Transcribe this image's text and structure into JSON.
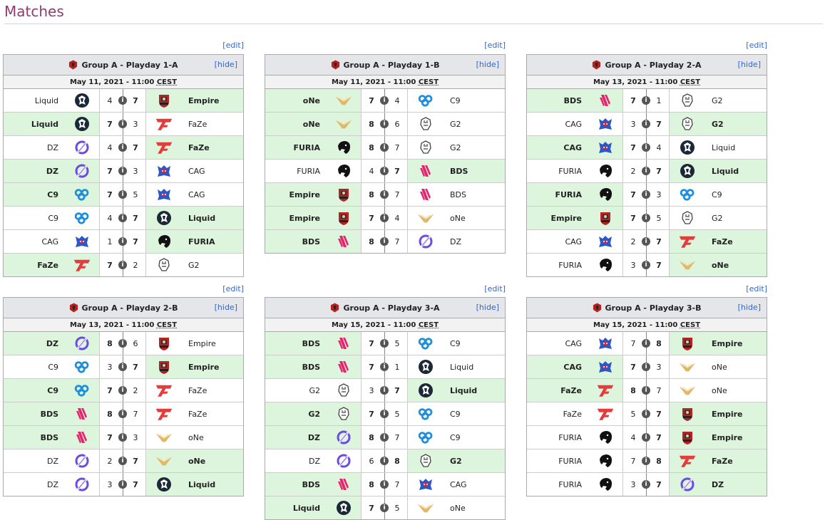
{
  "page": {
    "title": "Matches",
    "edit_label": "[edit]",
    "hide_label": "[hide]"
  },
  "groups": [
    {
      "title": "Group A - Playday 1-A",
      "date": "May 11, 2021 - 11:00",
      "tz": "CEST",
      "matches": [
        {
          "t1": "Liquid",
          "s1": "4",
          "s2": "7",
          "t2": "Empire",
          "w": 2
        },
        {
          "t1": "Liquid",
          "s1": "7",
          "s2": "3",
          "t2": "FaZe",
          "w": 1
        },
        {
          "t1": "DZ",
          "s1": "4",
          "s2": "7",
          "t2": "FaZe",
          "w": 2
        },
        {
          "t1": "DZ",
          "s1": "7",
          "s2": "3",
          "t2": "CAG",
          "w": 1
        },
        {
          "t1": "C9",
          "s1": "7",
          "s2": "5",
          "t2": "CAG",
          "w": 1
        },
        {
          "t1": "C9",
          "s1": "4",
          "s2": "7",
          "t2": "Liquid",
          "w": 2
        },
        {
          "t1": "CAG",
          "s1": "1",
          "s2": "7",
          "t2": "FURIA",
          "w": 2
        },
        {
          "t1": "FaZe",
          "s1": "7",
          "s2": "2",
          "t2": "G2",
          "w": 1
        }
      ]
    },
    {
      "title": "Group A - Playday 1-B",
      "date": "May 11, 2021 - 11:00",
      "tz": "CEST",
      "matches": [
        {
          "t1": "oNe",
          "s1": "7",
          "s2": "4",
          "t2": "C9",
          "w": 1
        },
        {
          "t1": "oNe",
          "s1": "8",
          "s2": "6",
          "t2": "G2",
          "w": 1
        },
        {
          "t1": "FURIA",
          "s1": "8",
          "s2": "7",
          "t2": "G2",
          "w": 1
        },
        {
          "t1": "FURIA",
          "s1": "4",
          "s2": "7",
          "t2": "BDS",
          "w": 2
        },
        {
          "t1": "Empire",
          "s1": "8",
          "s2": "7",
          "t2": "BDS",
          "w": 1
        },
        {
          "t1": "Empire",
          "s1": "7",
          "s2": "4",
          "t2": "oNe",
          "w": 1
        },
        {
          "t1": "BDS",
          "s1": "8",
          "s2": "7",
          "t2": "DZ",
          "w": 1
        }
      ]
    },
    {
      "title": "Group A - Playday 2-A",
      "date": "May 13, 2021 - 11:00",
      "tz": "CEST",
      "matches": [
        {
          "t1": "BDS",
          "s1": "7",
          "s2": "1",
          "t2": "G2",
          "w": 1
        },
        {
          "t1": "CAG",
          "s1": "3",
          "s2": "7",
          "t2": "G2",
          "w": 2
        },
        {
          "t1": "CAG",
          "s1": "7",
          "s2": "4",
          "t2": "Liquid",
          "w": 1
        },
        {
          "t1": "FURIA",
          "s1": "2",
          "s2": "7",
          "t2": "Liquid",
          "w": 2
        },
        {
          "t1": "FURIA",
          "s1": "7",
          "s2": "3",
          "t2": "C9",
          "w": 1
        },
        {
          "t1": "Empire",
          "s1": "7",
          "s2": "5",
          "t2": "G2",
          "w": 1
        },
        {
          "t1": "CAG",
          "s1": "2",
          "s2": "7",
          "t2": "FaZe",
          "w": 2
        },
        {
          "t1": "FURIA",
          "s1": "3",
          "s2": "7",
          "t2": "oNe",
          "w": 2
        }
      ]
    },
    {
      "title": "Group A - Playday 2-B",
      "date": "May 13, 2021 - 11:00",
      "tz": "CEST",
      "matches": [
        {
          "t1": "DZ",
          "s1": "8",
          "s2": "6",
          "t2": "Empire",
          "w": 1
        },
        {
          "t1": "C9",
          "s1": "3",
          "s2": "7",
          "t2": "Empire",
          "w": 2
        },
        {
          "t1": "C9",
          "s1": "7",
          "s2": "2",
          "t2": "FaZe",
          "w": 1
        },
        {
          "t1": "BDS",
          "s1": "8",
          "s2": "7",
          "t2": "FaZe",
          "w": 1
        },
        {
          "t1": "BDS",
          "s1": "7",
          "s2": "3",
          "t2": "oNe",
          "w": 1
        },
        {
          "t1": "DZ",
          "s1": "2",
          "s2": "7",
          "t2": "oNe",
          "w": 2
        },
        {
          "t1": "DZ",
          "s1": "3",
          "s2": "7",
          "t2": "Liquid",
          "w": 2
        }
      ]
    },
    {
      "title": "Group A - Playday 3-A",
      "date": "May 15, 2021 - 11:00",
      "tz": "CEST",
      "matches": [
        {
          "t1": "BDS",
          "s1": "7",
          "s2": "5",
          "t2": "C9",
          "w": 1
        },
        {
          "t1": "BDS",
          "s1": "7",
          "s2": "1",
          "t2": "Liquid",
          "w": 1
        },
        {
          "t1": "G2",
          "s1": "3",
          "s2": "7",
          "t2": "Liquid",
          "w": 2
        },
        {
          "t1": "G2",
          "s1": "7",
          "s2": "5",
          "t2": "C9",
          "w": 1
        },
        {
          "t1": "DZ",
          "s1": "8",
          "s2": "7",
          "t2": "C9",
          "w": 1
        },
        {
          "t1": "DZ",
          "s1": "6",
          "s2": "8",
          "t2": "G2",
          "w": 2
        },
        {
          "t1": "BDS",
          "s1": "8",
          "s2": "7",
          "t2": "CAG",
          "w": 1
        },
        {
          "t1": "Liquid",
          "s1": "7",
          "s2": "5",
          "t2": "oNe",
          "w": 1
        }
      ]
    },
    {
      "title": "Group A - Playday 3-B",
      "date": "May 15, 2021 - 11:00",
      "tz": "CEST",
      "matches": [
        {
          "t1": "CAG",
          "s1": "7",
          "s2": "8",
          "t2": "Empire",
          "w": 2
        },
        {
          "t1": "CAG",
          "s1": "7",
          "s2": "3",
          "t2": "oNe",
          "w": 1
        },
        {
          "t1": "FaZe",
          "s1": "8",
          "s2": "7",
          "t2": "oNe",
          "w": 1
        },
        {
          "t1": "FaZe",
          "s1": "5",
          "s2": "7",
          "t2": "Empire",
          "w": 2
        },
        {
          "t1": "FURIA",
          "s1": "4",
          "s2": "7",
          "t2": "Empire",
          "w": 2
        },
        {
          "t1": "FURIA",
          "s1": "7",
          "s2": "8",
          "t2": "FaZe",
          "w": 2
        },
        {
          "t1": "FURIA",
          "s1": "3",
          "s2": "7",
          "t2": "DZ",
          "w": 2
        }
      ]
    }
  ],
  "team_icons": {
    "Liquid": "liquid-horse-icon",
    "Empire": "empire-shield-icon",
    "FaZe": "faze-logo-icon",
    "DZ": "dz-ring-icon",
    "CAG": "cag-wolf-icon",
    "C9": "cloud9-icon",
    "FURIA": "furia-panther-icon",
    "G2": "g2-samurai-icon",
    "oNe": "one-wings-icon",
    "BDS": "bds-stripes-icon"
  }
}
